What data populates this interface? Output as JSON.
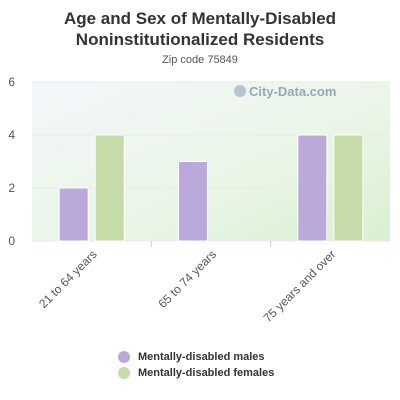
{
  "chart_data": {
    "type": "bar",
    "title": "Age and Sex of Mentally-Disabled Noninstitutionalized Residents",
    "subtitle": "Zip code 75849",
    "categories": [
      "21 to 64 years",
      "65 to 74 years",
      "75 years and over"
    ],
    "series": [
      {
        "name": "Mentally-disabled males",
        "values": [
          2,
          3,
          4
        ],
        "color": "#bca9db"
      },
      {
        "name": "Mentally-disabled females",
        "values": [
          4,
          0,
          4
        ],
        "color": "#c5dba8"
      }
    ],
    "yticks": [
      0,
      2,
      4,
      6
    ],
    "ylim": [
      0,
      6
    ],
    "xlabel": "",
    "ylabel": "",
    "grid": true,
    "legend_position": "bottom"
  },
  "watermark": "City-Data.com"
}
